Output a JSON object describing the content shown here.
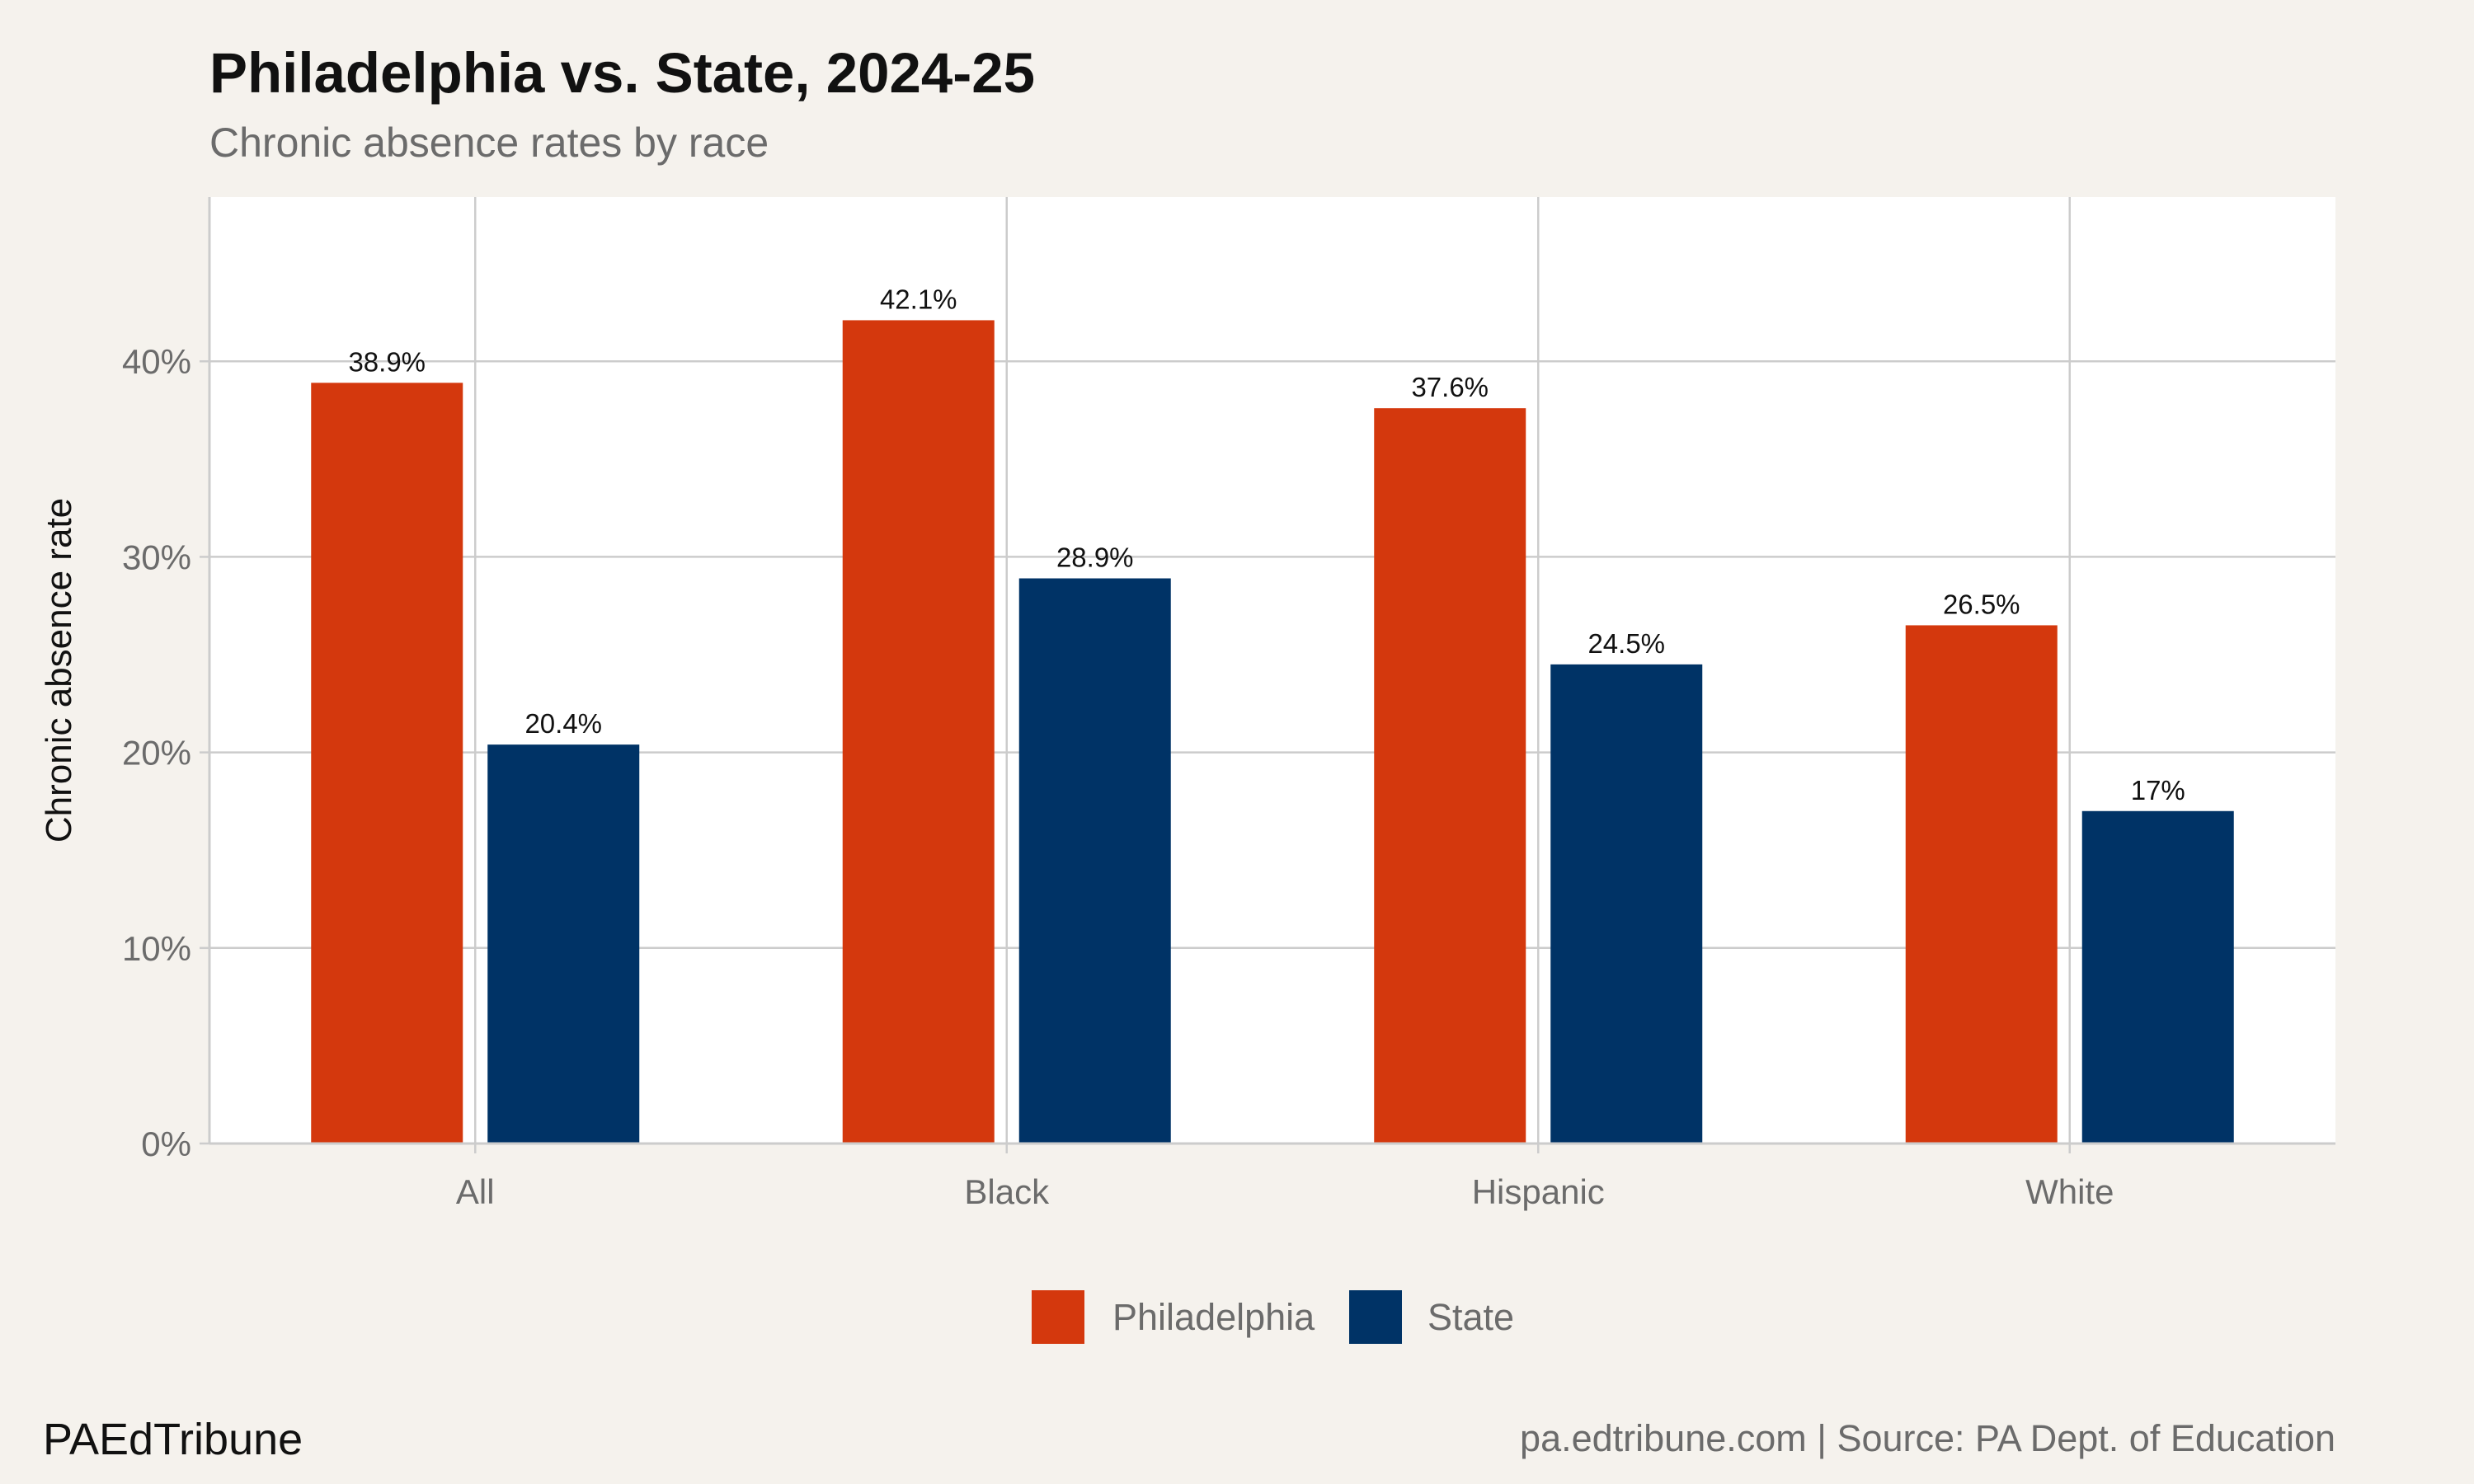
{
  "chart_data": {
    "type": "bar",
    "title": "Philadelphia vs. State, 2024-25",
    "subtitle": "Chronic absence rates by race",
    "xlabel": "",
    "ylabel": "Chronic absence rate",
    "categories": [
      "All",
      "Black",
      "Hispanic",
      "White"
    ],
    "series": [
      {
        "name": "Philadelphia",
        "color": "#D4380D",
        "values": [
          38.9,
          42.1,
          37.6,
          26.5
        ],
        "labels": [
          "38.9%",
          "42.1%",
          "37.6%",
          "26.5%"
        ]
      },
      {
        "name": "State",
        "color": "#003366",
        "values": [
          20.4,
          28.9,
          24.5,
          17.0
        ],
        "labels": [
          "20.4%",
          "28.9%",
          "24.5%",
          "17%"
        ]
      }
    ],
    "ylim": [
      0,
      48.4
    ],
    "yticks": [
      0,
      10,
      20,
      30,
      40
    ],
    "ytick_labels": [
      "0%",
      "10%",
      "20%",
      "30%",
      "40%"
    ],
    "grid": true,
    "legend_position": "bottom"
  },
  "footer": {
    "brand": "PAEdTribune",
    "source": "pa.edtribune.com | Source: PA Dept. of Education"
  },
  "colors": {
    "background": "#F5F2ED",
    "panel": "#FFFFFF",
    "grid": "#CCCCCC"
  }
}
